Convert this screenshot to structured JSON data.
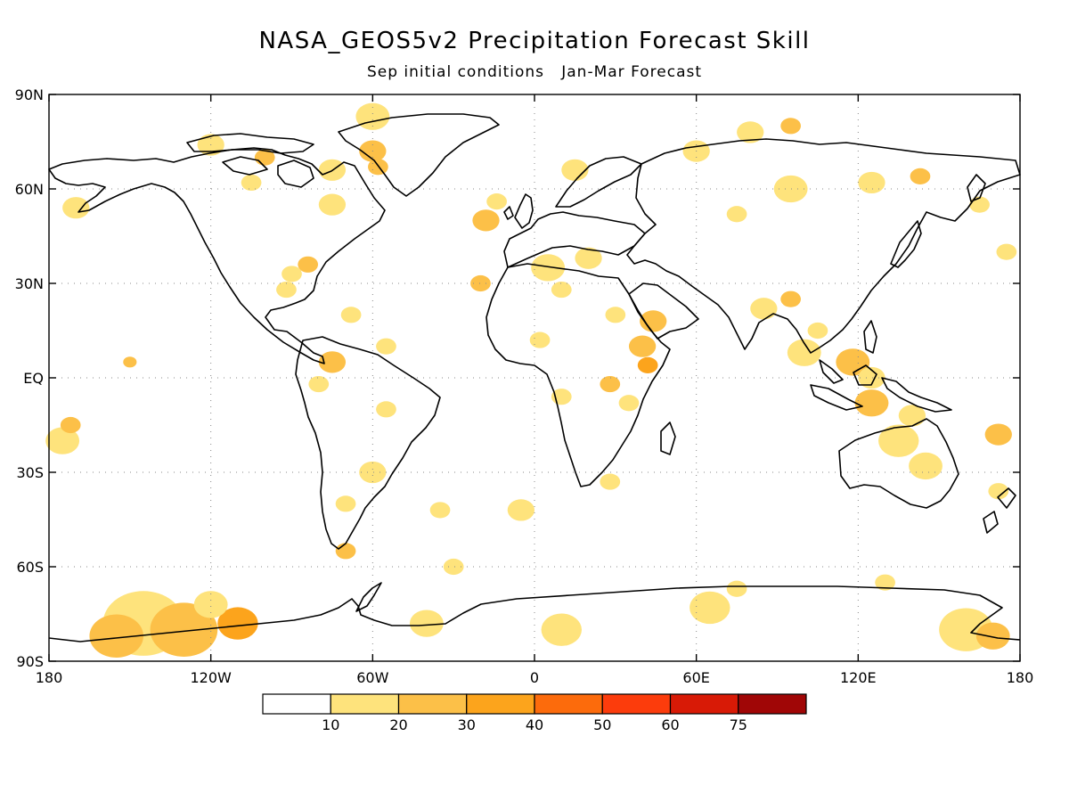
{
  "title": "NASA_GEOS5v2 Precipitation Forecast Skill",
  "subtitle": "Sep initial conditions   Jan-Mar Forecast",
  "map": {
    "lat_labels": [
      {
        "lat": 90,
        "text": "90N"
      },
      {
        "lat": 60,
        "text": "60N"
      },
      {
        "lat": 30,
        "text": "30N"
      },
      {
        "lat": 0,
        "text": "EQ"
      },
      {
        "lat": -30,
        "text": "30S"
      },
      {
        "lat": -60,
        "text": "60S"
      },
      {
        "lat": -90,
        "text": "90S"
      }
    ],
    "lon_labels": [
      {
        "lon": -180,
        "text": "180"
      },
      {
        "lon": -120,
        "text": "120W"
      },
      {
        "lon": -60,
        "text": "60W"
      },
      {
        "lon": 0,
        "text": "0"
      },
      {
        "lon": 60,
        "text": "60E"
      },
      {
        "lon": 120,
        "text": "120E"
      },
      {
        "lon": 180,
        "text": "180"
      }
    ]
  },
  "colorbar": {
    "labels": [
      "10",
      "20",
      "30",
      "40",
      "50",
      "60",
      "75"
    ],
    "colors": [
      "#ffffff",
      "#fee37c",
      "#fcc048",
      "#fca41c",
      "#fc6b0c",
      "#fc3c0c",
      "#d81a06",
      "#a00606"
    ]
  },
  "skill_regions": [
    {
      "lat": 83,
      "lon": -60,
      "r": 5,
      "level": 1
    },
    {
      "lat": 72,
      "lon": -60,
      "r": 4,
      "level": 2
    },
    {
      "lat": 74,
      "lon": -120,
      "r": 4,
      "level": 1
    },
    {
      "lat": 70,
      "lon": -100,
      "r": 3,
      "level": 2
    },
    {
      "lat": 66,
      "lon": -75,
      "r": 4,
      "level": 1
    },
    {
      "lat": 62,
      "lon": -105,
      "r": 3,
      "level": 1
    },
    {
      "lat": 67,
      "lon": -58,
      "r": 3,
      "level": 2
    },
    {
      "lat": 55,
      "lon": -75,
      "r": 4,
      "level": 1
    },
    {
      "lat": 36,
      "lon": -84,
      "r": 3,
      "level": 2
    },
    {
      "lat": 33,
      "lon": -90,
      "r": 3,
      "level": 1
    },
    {
      "lat": 28,
      "lon": -92,
      "r": 3,
      "level": 1
    },
    {
      "lat": 54,
      "lon": -170,
      "r": 4,
      "level": 1
    },
    {
      "lat": 50,
      "lon": -18,
      "r": 4,
      "level": 2
    },
    {
      "lat": 56,
      "lon": -14,
      "r": 3,
      "level": 1
    },
    {
      "lat": 35,
      "lon": 5,
      "r": 5,
      "level": 1
    },
    {
      "lat": 38,
      "lon": 20,
      "r": 4,
      "level": 1
    },
    {
      "lat": 30,
      "lon": -20,
      "r": 3,
      "level": 2
    },
    {
      "lat": 28,
      "lon": 10,
      "r": 3,
      "level": 1
    },
    {
      "lat": 66,
      "lon": 15,
      "r": 4,
      "level": 1
    },
    {
      "lat": 72,
      "lon": 60,
      "r": 4,
      "level": 1
    },
    {
      "lat": 80,
      "lon": 95,
      "r": 3,
      "level": 2
    },
    {
      "lat": 78,
      "lon": 80,
      "r": 4,
      "level": 1
    },
    {
      "lat": 60,
      "lon": 95,
      "r": 5,
      "level": 1
    },
    {
      "lat": 62,
      "lon": 125,
      "r": 4,
      "level": 1
    },
    {
      "lat": 52,
      "lon": 75,
      "r": 3,
      "level": 1
    },
    {
      "lat": 64,
      "lon": 143,
      "r": 3,
      "level": 2
    },
    {
      "lat": 55,
      "lon": 165,
      "r": 3,
      "level": 1
    },
    {
      "lat": 40,
      "lon": 175,
      "r": 3,
      "level": 1
    },
    {
      "lat": 18,
      "lon": 44,
      "r": 4,
      "level": 2
    },
    {
      "lat": 10,
      "lon": 40,
      "r": 4,
      "level": 2
    },
    {
      "lat": 4,
      "lon": 42,
      "r": 3,
      "level": 3
    },
    {
      "lat": 22,
      "lon": 85,
      "r": 4,
      "level": 1
    },
    {
      "lat": 25,
      "lon": 95,
      "r": 3,
      "level": 2
    },
    {
      "lat": 15,
      "lon": 105,
      "r": 3,
      "level": 1
    },
    {
      "lat": 8,
      "lon": 100,
      "r": 5,
      "level": 1
    },
    {
      "lat": 5,
      "lon": 118,
      "r": 5,
      "level": 2
    },
    {
      "lat": 0,
      "lon": 125,
      "r": 4,
      "level": 1
    },
    {
      "lat": -8,
      "lon": 125,
      "r": 5,
      "level": 2
    },
    {
      "lat": -12,
      "lon": 140,
      "r": 4,
      "level": 1
    },
    {
      "lat": -20,
      "lon": 135,
      "r": 6,
      "level": 1
    },
    {
      "lat": -28,
      "lon": 145,
      "r": 5,
      "level": 1
    },
    {
      "lat": -18,
      "lon": 172,
      "r": 4,
      "level": 2
    },
    {
      "lat": -36,
      "lon": 172,
      "r": 3,
      "level": 1
    },
    {
      "lat": -6,
      "lon": 10,
      "r": 3,
      "level": 1
    },
    {
      "lat": -2,
      "lon": 28,
      "r": 3,
      "level": 2
    },
    {
      "lat": -8,
      "lon": 35,
      "r": 3,
      "level": 1
    },
    {
      "lat": 12,
      "lon": 2,
      "r": 3,
      "level": 1
    },
    {
      "lat": 20,
      "lon": 30,
      "r": 3,
      "level": 1
    },
    {
      "lat": -33,
      "lon": 28,
      "r": 3,
      "level": 1
    },
    {
      "lat": -42,
      "lon": -5,
      "r": 4,
      "level": 1
    },
    {
      "lat": -60,
      "lon": -30,
      "r": 3,
      "level": 1
    },
    {
      "lat": -20,
      "lon": -175,
      "r": 5,
      "level": 1
    },
    {
      "lat": -15,
      "lon": -172,
      "r": 3,
      "level": 2
    },
    {
      "lat": 5,
      "lon": -150,
      "r": 2,
      "level": 2
    },
    {
      "lat": -2,
      "lon": -80,
      "r": 3,
      "level": 1
    },
    {
      "lat": 5,
      "lon": -75,
      "r": 4,
      "level": 2
    },
    {
      "lat": -10,
      "lon": -55,
      "r": 3,
      "level": 1
    },
    {
      "lat": -30,
      "lon": -60,
      "r": 4,
      "level": 1
    },
    {
      "lat": -40,
      "lon": -70,
      "r": 3,
      "level": 1
    },
    {
      "lat": -55,
      "lon": -70,
      "r": 3,
      "level": 2
    },
    {
      "lat": -42,
      "lon": -35,
      "r": 3,
      "level": 1
    },
    {
      "lat": 10,
      "lon": -55,
      "r": 3,
      "level": 1
    },
    {
      "lat": 20,
      "lon": -68,
      "r": 3,
      "level": 1
    },
    {
      "lat": -78,
      "lon": -145,
      "r": 12,
      "level": 1
    },
    {
      "lat": -80,
      "lon": -130,
      "r": 10,
      "level": 2
    },
    {
      "lat": -82,
      "lon": -155,
      "r": 8,
      "level": 2
    },
    {
      "lat": -78,
      "lon": -110,
      "r": 6,
      "level": 3
    },
    {
      "lat": -72,
      "lon": -120,
      "r": 5,
      "level": 1
    },
    {
      "lat": -78,
      "lon": -40,
      "r": 5,
      "level": 1
    },
    {
      "lat": -80,
      "lon": 10,
      "r": 6,
      "level": 1
    },
    {
      "lat": -73,
      "lon": 65,
      "r": 6,
      "level": 1
    },
    {
      "lat": -67,
      "lon": 75,
      "r": 3,
      "level": 1
    },
    {
      "lat": -80,
      "lon": 160,
      "r": 8,
      "level": 1
    },
    {
      "lat": -82,
      "lon": 170,
      "r": 5,
      "level": 2
    },
    {
      "lat": -65,
      "lon": 130,
      "r": 3,
      "level": 1
    }
  ]
}
